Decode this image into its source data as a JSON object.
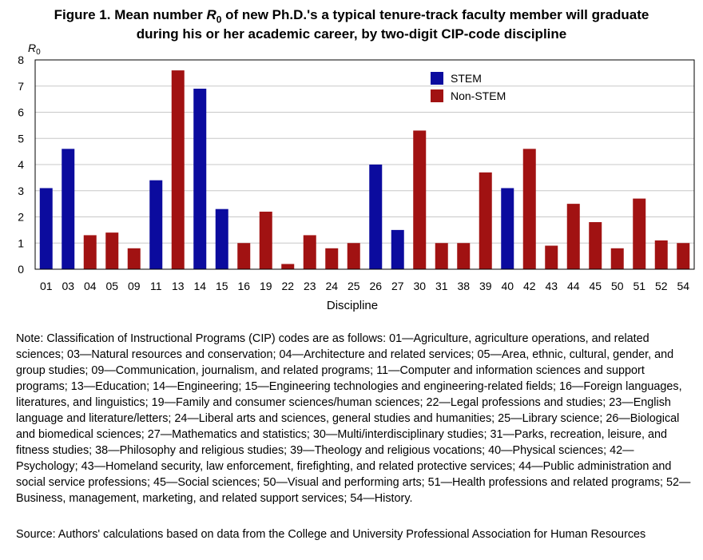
{
  "title": {
    "line1_pre": "Figure 1. Mean number ",
    "line1_var": "R",
    "line1_sub": "0",
    "line1_post": " of new Ph.D.'s a typical tenure-track faculty member will graduate",
    "line2": "during his or her academic career, by two-digit CIP-code discipline"
  },
  "chart_data": {
    "type": "bar",
    "ylabel_var": "R",
    "ylabel_sub": "0",
    "xlabel": "Discipline",
    "ylim": [
      0,
      8
    ],
    "yticks": [
      0,
      1,
      2,
      3,
      4,
      5,
      6,
      7,
      8
    ],
    "grid": true,
    "legend_position": "top-center-right",
    "categories": [
      "01",
      "03",
      "04",
      "05",
      "09",
      "11",
      "13",
      "14",
      "15",
      "16",
      "19",
      "22",
      "23",
      "24",
      "25",
      "26",
      "27",
      "30",
      "31",
      "38",
      "39",
      "40",
      "42",
      "43",
      "44",
      "45",
      "50",
      "51",
      "52",
      "54"
    ],
    "values": [
      3.1,
      4.6,
      1.3,
      1.4,
      0.8,
      3.4,
      7.6,
      6.9,
      2.3,
      1.0,
      2.2,
      0.2,
      1.3,
      0.8,
      1.0,
      4.0,
      1.5,
      5.3,
      1.0,
      1.0,
      3.7,
      3.1,
      4.6,
      0.9,
      2.5,
      1.8,
      0.8,
      2.7,
      1.1,
      1.0
    ],
    "groups": [
      "STEM",
      "STEM",
      "Non-STEM",
      "Non-STEM",
      "Non-STEM",
      "STEM",
      "Non-STEM",
      "STEM",
      "STEM",
      "Non-STEM",
      "Non-STEM",
      "Non-STEM",
      "Non-STEM",
      "Non-STEM",
      "Non-STEM",
      "STEM",
      "STEM",
      "Non-STEM",
      "Non-STEM",
      "Non-STEM",
      "Non-STEM",
      "STEM",
      "Non-STEM",
      "Non-STEM",
      "Non-STEM",
      "Non-STEM",
      "Non-STEM",
      "Non-STEM",
      "Non-STEM",
      "Non-STEM"
    ],
    "legend": [
      {
        "name": "STEM",
        "color": "#0b0b9e"
      },
      {
        "name": "Non-STEM",
        "color": "#a11212"
      }
    ]
  },
  "note": "Note: Classification of Instructional Programs (CIP) codes are as follows: 01—Agriculture, agriculture operations, and related sciences; 03—Natural resources and conservation; 04—Architecture and related services; 05—Area, ethnic, cultural, gender, and group studies; 09—Communication, journalism, and related programs; 11—Computer and information sciences and support programs; 13—Education; 14—Engineering; 15—Engineering technologies and engineering-related fields; 16—Foreign languages, literatures, and linguistics; 19—Family and consumer sciences/human sciences; 22—Legal professions and studies; 23—English language and literature/letters; 24—Liberal arts and sciences, general studies and humanities; 25—Library science; 26—Biological and biomedical sciences; 27—Mathematics and statistics; 30—Multi/interdisciplinary studies; 31—Parks, recreation, leisure, and fitness studies; 38—Philosophy and religious studies; 39—Theology and religious vocations; 40—Physical sciences; 42—Psychology; 43—Homeland security, law enforcement, firefighting, and related protective services; 44—Public administration and social service professions; 45—Social sciences; 50—Visual and performing arts; 51—Health professions and related programs; 52—Business, management, marketing, and related support services; 54—History.",
  "source": "Source: Authors' calculations based on data from the College and University Professional Association for Human Resources"
}
